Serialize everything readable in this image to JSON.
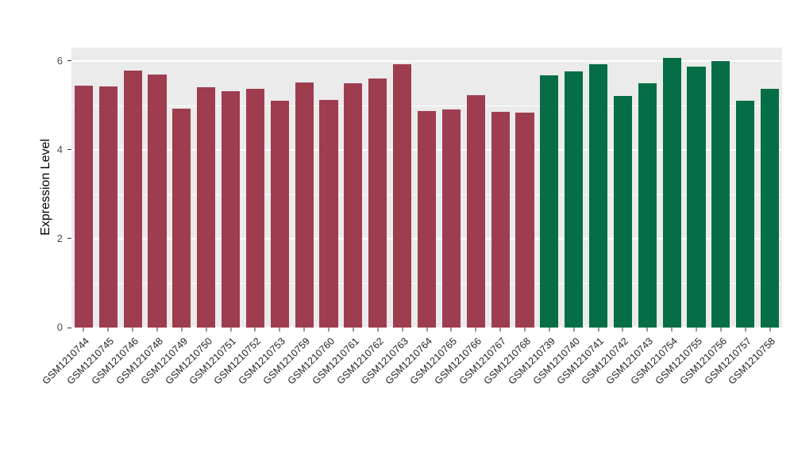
{
  "chart_data": {
    "type": "bar",
    "title": "",
    "xlabel": "",
    "ylabel": "Expression Level",
    "ylim": [
      0,
      6.3
    ],
    "yticks": [
      0,
      2,
      4,
      6
    ],
    "yticks_minor": [
      1,
      3,
      5
    ],
    "grid": true,
    "legend": "none",
    "panel_background": "#EBEBEB",
    "grid_color": "#FFFFFF",
    "bar_slot_fill": 0.75,
    "series": [
      {
        "name": "group-red",
        "color": "#9E3D4F",
        "categories": [
          "GSM1210744",
          "GSM1210745",
          "GSM1210746",
          "GSM1210748",
          "GSM1210749",
          "GSM1210750",
          "GSM1210751",
          "GSM1210752",
          "GSM1210753",
          "GSM1210759",
          "GSM1210760",
          "GSM1210761",
          "GSM1210762",
          "GSM1210763",
          "GSM1210764",
          "GSM1210765",
          "GSM1210766",
          "GSM1210767",
          "GSM1210768"
        ],
        "values": [
          5.45,
          5.42,
          5.78,
          5.7,
          4.93,
          5.4,
          5.32,
          5.38,
          5.1,
          5.52,
          5.13,
          5.5,
          5.6,
          5.92,
          4.88,
          4.9,
          5.23,
          4.85,
          4.83
        ]
      },
      {
        "name": "group-green",
        "color": "#066E46",
        "categories": [
          "GSM1210739",
          "GSM1210740",
          "GSM1210741",
          "GSM1210742",
          "GSM1210743",
          "GSM1210754",
          "GSM1210755",
          "GSM1210756",
          "GSM1210757",
          "GSM1210758"
        ],
        "values": [
          5.68,
          5.77,
          5.92,
          5.22,
          5.5,
          6.07,
          5.87,
          6.0,
          5.1,
          5.37
        ]
      }
    ]
  }
}
